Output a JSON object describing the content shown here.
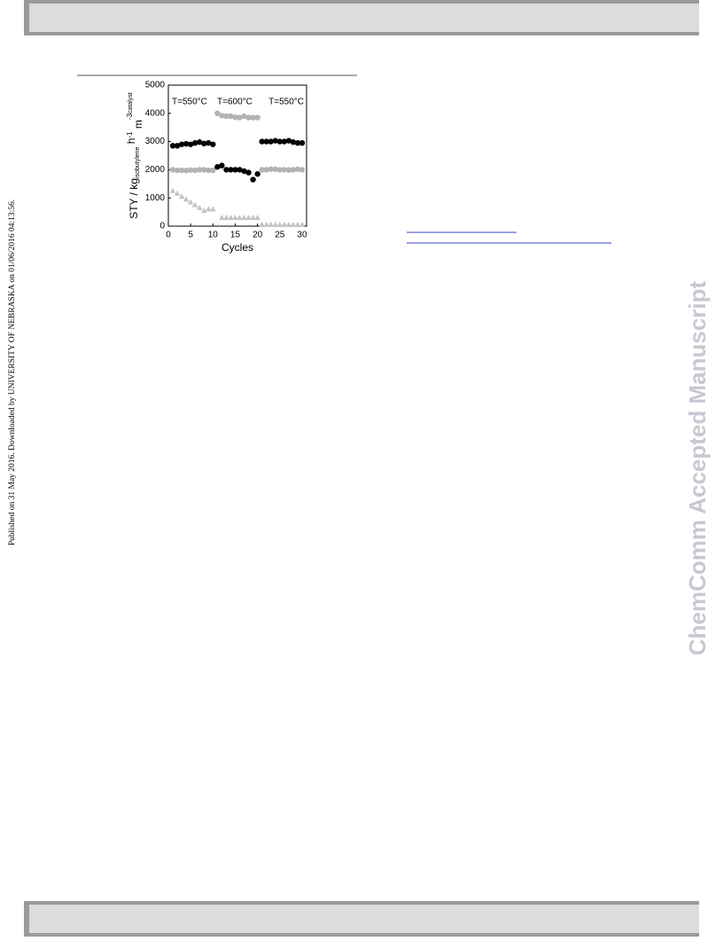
{
  "margin_note": "Published on 31 May 2016. Downloaded by UNIVERSITY OF NEBRASKA on 01/06/2016 04:13:56.",
  "watermark": "ChemComm Accepted Manuscript",
  "chart_data": {
    "type": "scatter",
    "x_label": "Cycles",
    "y_label_parts": [
      "STY / kg",
      "isobutylene",
      " h",
      "-1",
      " m",
      "-3",
      "catalyst"
    ],
    "annotations": [
      "T=550°C",
      "T=600°C",
      "T=550°C"
    ],
    "x": [
      1,
      2,
      3,
      4,
      5,
      6,
      7,
      8,
      9,
      10,
      11,
      12,
      13,
      14,
      15,
      16,
      17,
      18,
      19,
      20,
      21,
      22,
      23,
      24,
      25,
      26,
      27,
      28,
      29,
      30
    ],
    "series": [
      {
        "color": "#b3b3b3",
        "marker": "circle",
        "values": [
          2000,
          1980,
          1980,
          1970,
          1990,
          1980,
          2000,
          2000,
          1980,
          1980,
          4000,
          3920,
          3900,
          3900,
          3860,
          3850,
          3900,
          3850,
          3850,
          3850,
          2000,
          2000,
          2020,
          2020,
          2000,
          2000,
          1990,
          2000,
          2020,
          2000
        ]
      },
      {
        "color": "#000000",
        "marker": "circle",
        "values": [
          2850,
          2850,
          2900,
          2920,
          2900,
          2950,
          2980,
          2930,
          2950,
          2900,
          2100,
          2150,
          2000,
          2000,
          2000,
          2000,
          1950,
          1900,
          1650,
          1850,
          3000,
          3000,
          3000,
          3030,
          3000,
          3000,
          3030,
          2980,
          2950,
          2950
        ]
      },
      {
        "color": "#c4c4c4",
        "marker": "triangle",
        "values": [
          1250,
          1150,
          1050,
          950,
          850,
          750,
          650,
          550,
          600,
          600,
          null,
          300,
          300,
          300,
          300,
          300,
          300,
          300,
          300,
          300,
          50,
          50,
          50,
          50,
          50,
          50,
          50,
          50,
          50,
          50
        ]
      }
    ],
    "xlim": [
      0,
      31
    ],
    "xticks": [
      0,
      5,
      10,
      15,
      20,
      25,
      30
    ],
    "ylim": [
      0,
      5000
    ],
    "yticks": [
      0,
      1000,
      2000,
      3000,
      4000,
      5000
    ]
  }
}
